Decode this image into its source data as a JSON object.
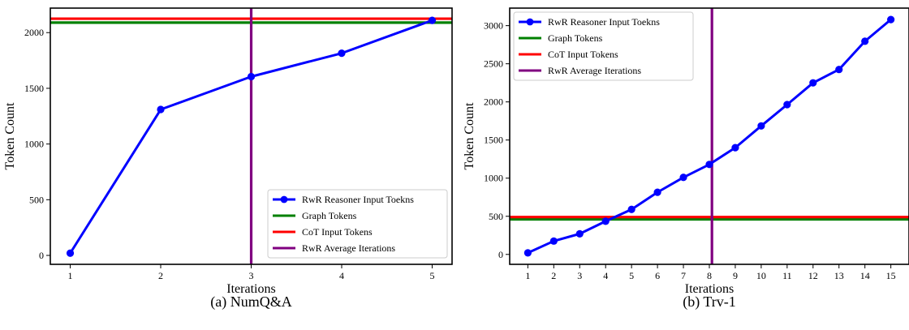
{
  "colors": {
    "rwr": "#0000ff",
    "graph": "#008000",
    "cot": "#ff0000",
    "avg": "#800080"
  },
  "chart_data": [
    {
      "type": "line",
      "caption": "(a) NumQ&A",
      "xlabel": "Iterations",
      "ylabel": "Token Count",
      "xlim": [
        0.78,
        5.22
      ],
      "ylim": [
        -80,
        2220
      ],
      "xticks": [
        1,
        2,
        3,
        4,
        5
      ],
      "yticks": [
        0,
        500,
        1000,
        1500,
        2000
      ],
      "series": [
        {
          "name": "RwR Reasoner Input Toekns",
          "x": [
            1,
            2,
            3,
            4,
            5
          ],
          "y": [
            20,
            1310,
            1605,
            1815,
            2110
          ]
        }
      ],
      "hlines": [
        {
          "name": "Graph Tokens",
          "y": 2090
        },
        {
          "name": "CoT Input Tokens",
          "y": 2125
        }
      ],
      "vline": {
        "name": "RwR Average Iterations",
        "x": 3
      },
      "legend": "lower right"
    },
    {
      "type": "line",
      "caption": "(b) Trv-1",
      "xlabel": "Iterations",
      "ylabel": "Token Count",
      "xlim": [
        0.3,
        15.7
      ],
      "ylim": [
        -130,
        3230
      ],
      "xticks": [
        1,
        2,
        3,
        4,
        5,
        6,
        7,
        8,
        9,
        10,
        11,
        12,
        13,
        14,
        15
      ],
      "yticks": [
        0,
        500,
        1000,
        1500,
        2000,
        2500,
        3000
      ],
      "series": [
        {
          "name": "RwR Reasoner Input Toekns",
          "x": [
            1,
            2,
            3,
            4,
            5,
            6,
            7,
            8,
            9,
            10,
            11,
            12,
            13,
            14,
            15
          ],
          "y": [
            20,
            175,
            270,
            435,
            590,
            815,
            1010,
            1180,
            1400,
            1685,
            1965,
            2250,
            2425,
            2795,
            3080
          ]
        }
      ],
      "hlines": [
        {
          "name": "Graph Tokens",
          "y": 460
        },
        {
          "name": "CoT Input Tokens",
          "y": 490
        }
      ],
      "vline": {
        "name": "RwR Average Iterations",
        "x": 8.1
      },
      "legend": "upper left"
    }
  ]
}
